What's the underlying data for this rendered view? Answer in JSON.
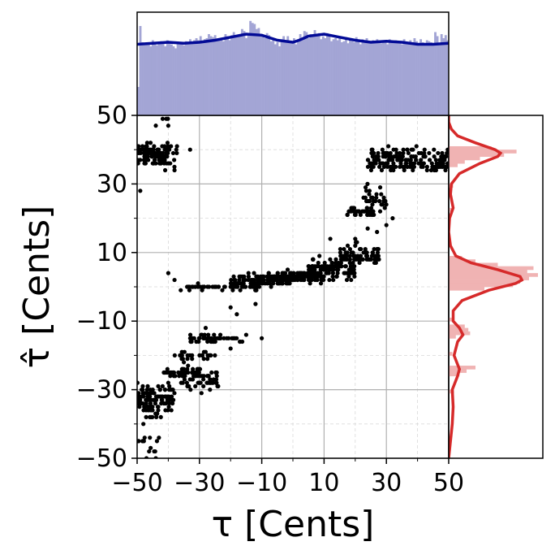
{
  "chart_data": [
    {
      "type": "scatter",
      "xlabel": "τ [Cents]",
      "ylabel": "τ̂ [Cents]",
      "xlim": [
        -50,
        50
      ],
      "ylim": [
        -50,
        50
      ],
      "x_ticks": [
        -50,
        -30,
        -10,
        10,
        30,
        50
      ],
      "y_ticks": [
        -50,
        -30,
        -10,
        10,
        30,
        50
      ],
      "x_tick_labels": [
        "−50",
        "−30",
        "−10",
        "10",
        "30",
        "50"
      ],
      "y_tick_labels": [
        "−50",
        "−30",
        "−10",
        "10",
        "30",
        "50"
      ],
      "grid": "major solid, minor dashed",
      "marker_color": "#000000",
      "clusters": [
        {
          "x_range": [
            -50,
            -40
          ],
          "y": 39,
          "y_spread": 2.0,
          "n": 90
        },
        {
          "x_range": [
            -42,
            -36
          ],
          "y": 40,
          "y_spread": 1.0,
          "n": 12
        },
        {
          "x_range": [
            -50,
            -38
          ],
          "y": 36,
          "y_spread": 1.0,
          "n": 20
        },
        {
          "x_range": [
            -46,
            -40
          ],
          "y": 49,
          "y_spread": 1.0,
          "n": 3
        },
        {
          "x_range": [
            -34,
            -10
          ],
          "y": 0,
          "y_spread": 0.5,
          "n": 60
        },
        {
          "x_range": [
            -20,
            0
          ],
          "y": 2,
          "y_spread": 1.5,
          "n": 90
        },
        {
          "x_range": [
            -8,
            10
          ],
          "y": 3,
          "y_spread": 1.0,
          "n": 130
        },
        {
          "x_range": [
            5,
            20
          ],
          "y": 5,
          "y_spread": 2.5,
          "n": 110
        },
        {
          "x_range": [
            15,
            28
          ],
          "y": 9,
          "y_spread": 2.5,
          "n": 70
        },
        {
          "x_range": [
            17,
            26
          ],
          "y": 22,
          "y_spread": 1.0,
          "n": 40
        },
        {
          "x_range": [
            22,
            30
          ],
          "y": 26,
          "y_spread": 3.0,
          "n": 30
        },
        {
          "x_range": [
            24,
            50
          ],
          "y": 35,
          "y_spread": 1.0,
          "n": 70
        },
        {
          "x_range": [
            24,
            50
          ],
          "y": 38,
          "y_spread": 2.0,
          "n": 110
        },
        {
          "x_range": [
            -33,
            -22
          ],
          "y": -15,
          "y_spread": 1.0,
          "n": 40
        },
        {
          "x_range": [
            -24,
            -16
          ],
          "y": -15,
          "y_spread": 0.7,
          "n": 12
        },
        {
          "x_range": [
            -38,
            -25
          ],
          "y": -20,
          "y_spread": 1.0,
          "n": 25
        },
        {
          "x_range": [
            -42,
            -30
          ],
          "y": -25,
          "y_spread": 1.0,
          "n": 45
        },
        {
          "x_range": [
            -36,
            -24
          ],
          "y": -27,
          "y_spread": 3.0,
          "n": 60
        },
        {
          "x_range": [
            -50,
            -38
          ],
          "y": -32,
          "y_spread": 3.0,
          "n": 90
        },
        {
          "x_range": [
            -48,
            -40
          ],
          "y": -36,
          "y_spread": 2.0,
          "n": 30
        },
        {
          "x_range": [
            -50,
            -43
          ],
          "y": -45,
          "y_spread": 1.0,
          "n": 8
        },
        {
          "x_range": [
            -47,
            -44
          ],
          "y": -48,
          "y_spread": 1.0,
          "n": 4
        }
      ],
      "sparse_points": [
        [
          -49,
          28
        ],
        [
          -33,
          40
        ],
        [
          -38,
          34
        ],
        [
          -41,
          34
        ],
        [
          -44,
          47
        ],
        [
          -40,
          47
        ],
        [
          -40,
          4
        ],
        [
          -38,
          2
        ],
        [
          -36,
          -1
        ],
        [
          -20,
          -6
        ],
        [
          -18,
          -8
        ],
        [
          -12,
          -5
        ],
        [
          -7,
          0
        ],
        [
          -4,
          2
        ],
        [
          12,
          14
        ],
        [
          20,
          14
        ],
        [
          24,
          17
        ],
        [
          27,
          16
        ],
        [
          27,
          11
        ],
        [
          30,
          18
        ],
        [
          32,
          20
        ],
        [
          20,
          12
        ],
        [
          28,
          22
        ],
        [
          -10,
          -15
        ],
        [
          -15,
          -14
        ],
        [
          -20,
          -18
        ],
        [
          -28,
          -12
        ],
        [
          -35,
          -22
        ],
        [
          -40,
          -28
        ],
        [
          -45,
          -30
        ],
        [
          -48,
          -40
        ],
        [
          -43,
          -44
        ],
        [
          -47,
          -50
        ],
        [
          -44,
          -50
        ]
      ]
    },
    {
      "type": "histogram",
      "orientation": "vertical",
      "variable": "τ",
      "bin_range": [
        -50,
        50
      ],
      "bar_color": "#a3a5d5",
      "curve_color": "#020a96",
      "bar_heights": [
        0.28,
        0.88,
        0.72,
        0.7,
        0.71,
        0.72,
        0.68,
        0.74,
        0.7,
        0.69,
        0.72,
        0.73,
        0.71,
        0.68,
        0.74,
        0.73,
        0.7,
        0.68,
        0.66,
        0.7,
        0.72,
        0.71,
        0.69,
        0.73,
        0.72,
        0.75,
        0.71,
        0.74,
        0.76,
        0.74,
        0.78,
        0.72,
        0.75,
        0.76,
        0.8,
        0.78,
        0.77,
        0.79,
        0.74,
        0.75,
        0.76,
        0.73,
        0.8,
        0.78,
        0.74,
        0.79,
        0.82,
        0.79,
        0.78,
        0.8,
        0.85,
        0.83,
        0.76,
        0.79,
        0.93,
        0.91,
        0.9,
        0.85,
        0.86,
        0.8,
        0.78,
        0.76,
        0.81,
        0.79,
        0.73,
        0.76,
        0.7,
        0.72,
        0.68,
        0.75,
        0.78,
        0.74,
        0.78,
        0.72,
        0.73,
        0.76,
        0.7,
        0.75,
        0.8,
        0.74,
        0.83,
        0.82,
        0.76,
        0.8,
        0.78,
        0.84,
        0.79,
        0.81,
        0.75,
        0.78,
        0.76,
        0.81,
        0.78,
        0.73,
        0.75,
        0.76,
        0.74,
        0.78,
        0.72,
        0.73,
        0.77,
        0.71,
        0.75,
        0.73,
        0.72,
        0.77,
        0.74,
        0.7,
        0.75,
        0.72,
        0.76,
        0.73,
        0.71,
        0.74,
        0.72,
        0.75,
        0.73,
        0.71,
        0.74,
        0.72,
        0.7,
        0.75,
        0.73,
        0.72,
        0.74,
        0.72,
        0.73,
        0.7,
        0.75,
        0.71,
        0.72,
        0.74,
        0.72,
        0.76,
        0.73,
        0.7,
        0.75,
        0.72,
        0.71,
        0.74,
        0.73,
        0.72,
        0.7,
        0.82,
        0.78,
        0.71,
        0.8,
        0.76,
        0.79,
        0.74
      ],
      "kde": [
        [
          -50,
          0.7
        ],
        [
          -45,
          0.71
        ],
        [
          -40,
          0.72
        ],
        [
          -35,
          0.71
        ],
        [
          -30,
          0.72
        ],
        [
          -25,
          0.74
        ],
        [
          -20,
          0.77
        ],
        [
          -15,
          0.8
        ],
        [
          -10,
          0.79
        ],
        [
          -5,
          0.74
        ],
        [
          0,
          0.72
        ],
        [
          2,
          0.74
        ],
        [
          5,
          0.78
        ],
        [
          10,
          0.8
        ],
        [
          15,
          0.77
        ],
        [
          20,
          0.74
        ],
        [
          25,
          0.72
        ],
        [
          30,
          0.73
        ],
        [
          35,
          0.72
        ],
        [
          40,
          0.7
        ],
        [
          45,
          0.7
        ],
        [
          50,
          0.71
        ]
      ]
    },
    {
      "type": "histogram",
      "orientation": "horizontal",
      "variable": "τ̂",
      "bin_range": [
        -50,
        50
      ],
      "bar_color": "#f0b3b3",
      "curve_color": "#d62a2a",
      "bars": [
        [
          39,
          0.76
        ],
        [
          38,
          0.62
        ],
        [
          40,
          0.48
        ],
        [
          37,
          0.35
        ],
        [
          36,
          0.18
        ],
        [
          35,
          0.1
        ],
        [
          -10,
          0.05
        ],
        [
          -14,
          0.24
        ],
        [
          -13,
          0.22
        ],
        [
          -12,
          0.18
        ],
        [
          -15,
          0.08
        ],
        [
          -24,
          0.3
        ],
        [
          -25,
          0.2
        ],
        [
          -26,
          0.12
        ],
        [
          5,
          0.95
        ],
        [
          4,
          0.88
        ],
        [
          3,
          1.0
        ],
        [
          2,
          0.9
        ],
        [
          1,
          0.8
        ],
        [
          0,
          0.72
        ],
        [
          6,
          0.55
        ],
        [
          -1,
          0.4
        ],
        [
          7,
          0.3
        ],
        [
          8,
          0.15
        ],
        [
          22,
          0.05
        ],
        [
          29,
          0.05
        ],
        [
          -31,
          0.06
        ],
        [
          -20,
          0.04
        ]
      ],
      "kde": [
        [
          -50,
          0.0
        ],
        [
          -45,
          0.02
        ],
        [
          -40,
          0.04
        ],
        [
          -35,
          0.05
        ],
        [
          -30,
          0.04
        ],
        [
          -26,
          0.1
        ],
        [
          -24,
          0.12
        ],
        [
          -20,
          0.06
        ],
        [
          -16,
          0.1
        ],
        [
          -14,
          0.16
        ],
        [
          -12,
          0.12
        ],
        [
          -10,
          0.05
        ],
        [
          -7,
          0.05
        ],
        [
          -4,
          0.15
        ],
        [
          -1,
          0.45
        ],
        [
          1,
          0.75
        ],
        [
          2,
          0.82
        ],
        [
          3,
          0.8
        ],
        [
          5,
          0.55
        ],
        [
          7,
          0.25
        ],
        [
          9,
          0.08
        ],
        [
          12,
          0.02
        ],
        [
          16,
          0.0
        ],
        [
          20,
          0.01
        ],
        [
          23,
          0.05
        ],
        [
          27,
          0.02
        ],
        [
          30,
          0.03
        ],
        [
          33,
          0.12
        ],
        [
          36,
          0.35
        ],
        [
          38,
          0.55
        ],
        [
          39,
          0.58
        ],
        [
          40,
          0.52
        ],
        [
          42,
          0.3
        ],
        [
          44,
          0.1
        ],
        [
          46,
          0.03
        ],
        [
          48,
          0.0
        ],
        [
          50,
          0.0
        ]
      ]
    }
  ]
}
